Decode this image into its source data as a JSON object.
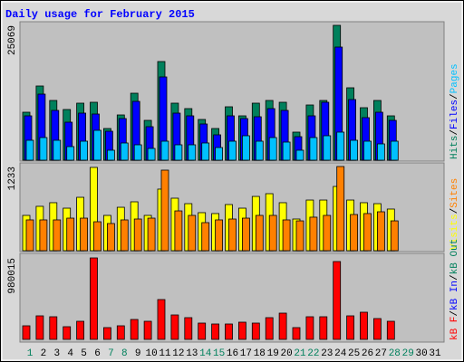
{
  "chart_data": {
    "type": "bar",
    "title": "Daily usage for February 2015",
    "legend_separator": "/",
    "categories": [
      1,
      2,
      3,
      4,
      5,
      6,
      7,
      8,
      9,
      10,
      11,
      12,
      13,
      14,
      15,
      16,
      17,
      18,
      19,
      20,
      21,
      22,
      23,
      24,
      25,
      26,
      27,
      28,
      29,
      30,
      31
    ],
    "category_colors": [
      "#00805c",
      "#000000",
      "#000000",
      "#000000",
      "#000000",
      "#000000",
      "#00805c",
      "#00805c",
      "#000000",
      "#000000",
      "#000000",
      "#000000",
      "#000000",
      "#00805c",
      "#00805c",
      "#000000",
      "#000000",
      "#000000",
      "#000000",
      "#000000",
      "#00805c",
      "#00805c",
      "#000000",
      "#000000",
      "#000000",
      "#000000",
      "#000000",
      "#00805c",
      "#00805c",
      "#000000",
      "#000000"
    ],
    "panels": [
      {
        "ylim": [
          0,
          25069
        ],
        "yticks": [
          25069
        ],
        "series": [
          {
            "name": "Hits",
            "color": "#00805c",
            "values": [
              8917,
              13796,
              11104,
              9422,
              10600,
              10768,
              5889,
              8412,
              12450,
              7403,
              18339,
              10600,
              9590,
              7571,
              5889,
              9927,
              8244,
              10600,
              11104,
              10768,
              5216,
              10263,
              11104,
              25069,
              13460,
              9758,
              11104,
              8244,
              null,
              null,
              null
            ]
          },
          {
            "name": "Files",
            "color": "#0000ff",
            "values": [
              8244,
              12282,
              9254,
              7066,
              8749,
              8581,
              5384,
              7739,
              10936,
              6225,
              15479,
              8749,
              8244,
              6730,
              4711,
              8244,
              7739,
              8076,
              9590,
              9254,
              4374,
              8244,
              10768,
              21031,
              11272,
              7908,
              8917,
              7403,
              null,
              null,
              null
            ]
          },
          {
            "name": "Pages",
            "color": "#00c0ff",
            "values": [
              3701,
              4206,
              3701,
              2524,
              3533,
              5552,
              1851,
              3197,
              2860,
              2187,
              3533,
              2860,
              2860,
              3197,
              2355,
              3533,
              4543,
              3533,
              4206,
              3365,
              1851,
              4206,
              4543,
              5216,
              3701,
              3533,
              3029,
              3533,
              null,
              null,
              null
            ]
          }
        ]
      },
      {
        "ylim": [
          0,
          1233
        ],
        "yticks": [
          1233
        ],
        "series": [
          {
            "name": "Visits",
            "color": "#ffff00",
            "values": [
              517,
              650,
              703,
              623,
              782,
              1220,
              517,
              636,
              716,
              517,
              902,
              769,
              689,
              557,
              544,
              676,
              623,
              795,
              835,
              703,
              464,
              742,
              742,
              941,
              742,
              703,
              689,
              610,
              null,
              null,
              null
            ]
          },
          {
            "name": "Sites",
            "color": "#ff8000",
            "values": [
              451,
              451,
              451,
              477,
              477,
              424,
              398,
              451,
              464,
              477,
              1180,
              583,
              517,
              411,
              451,
              464,
              477,
              517,
              517,
              451,
              437,
              491,
              517,
              1233,
              530,
              544,
              570,
              437,
              null,
              null,
              null
            ]
          }
        ]
      },
      {
        "ylim": [
          0,
          980015
        ],
        "yticks": [
          980015
        ],
        "series": [
          {
            "name": "kB F",
            "color": "#ff0000",
            "values": [
              163336,
              283115,
              272226,
              152447,
              217781,
              980015,
              141558,
              163336,
              239559,
              217781,
              479118,
              294004,
              261337,
              196003,
              185114,
              185114,
              206892,
              196003,
              261337,
              315783,
              141558,
              272226,
              272226,
              936459,
              283115,
              326672,
              250448,
              217781,
              null,
              null,
              null
            ]
          },
          {
            "name": "kB In",
            "color": "#0000ff",
            "values": [
              0,
              0,
              0,
              0,
              0,
              0,
              0,
              0,
              0,
              0,
              0,
              0,
              0,
              0,
              0,
              0,
              0,
              0,
              0,
              0,
              0,
              0,
              0,
              0,
              0,
              0,
              0,
              0,
              null,
              null,
              null
            ]
          },
          {
            "name": "kB Out",
            "color": "#00805c",
            "values": [
              0,
              0,
              0,
              0,
              0,
              0,
              0,
              0,
              0,
              0,
              0,
              0,
              0,
              0,
              0,
              0,
              0,
              0,
              0,
              0,
              0,
              0,
              0,
              0,
              0,
              0,
              0,
              0,
              null,
              null,
              null
            ]
          }
        ]
      }
    ]
  }
}
